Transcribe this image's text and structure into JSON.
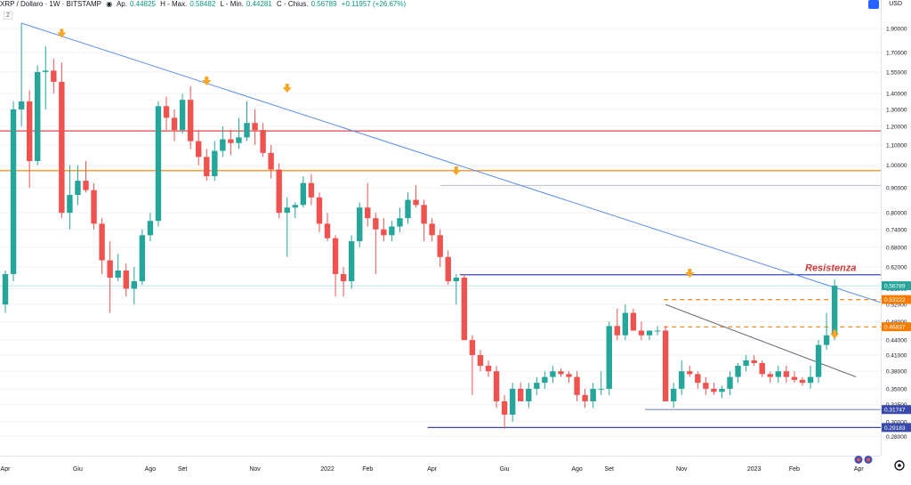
{
  "header": {
    "symbol": "XRP / Dollaro · 1W · BITSTAMP",
    "o_label": "Ap.",
    "o_value": "0.44825",
    "h_label": "H - Max.",
    "h_value": "0.58482",
    "l_label": "L - Min.",
    "l_value": "0.44281",
    "c_label": "C - Chius.",
    "c_value": "0.56789",
    "change": "+0.11957 (+26.67%)"
  },
  "scale_badge": "2",
  "currency": "USD",
  "colors": {
    "up": "#26a69a",
    "down": "#ef5350",
    "red_line": "#e0474c",
    "orange_line": "#f57c00",
    "blue_line": "#3949ab",
    "trend": "#5b8def"
  },
  "chart_data": {
    "type": "candlestick",
    "ylabel": "",
    "scale": "log",
    "ylim": [
      0.26,
      2.05
    ],
    "y_ticks": [
      "1.90000",
      "1.70000",
      "1.55000",
      "1.40000",
      "1.30000",
      "1.20000",
      "1.10000",
      "1.00000",
      "0.90000",
      "0.80000",
      "0.74000",
      "0.68000",
      "0.62000",
      "0.56000",
      "0.52000",
      "0.48000",
      "0.44000",
      "0.41000",
      "0.38000",
      "0.35000",
      "0.32500",
      "0.30000",
      "0.28000"
    ],
    "x_ticks": [
      {
        "label": "Apr",
        "i": 0
      },
      {
        "label": "Giu",
        "i": 9
      },
      {
        "label": "Ago",
        "i": 18
      },
      {
        "label": "Set",
        "i": 22
      },
      {
        "label": "Nov",
        "i": 31
      },
      {
        "label": "2022",
        "i": 40
      },
      {
        "label": "Feb",
        "i": 45
      },
      {
        "label": "Apr",
        "i": 53
      },
      {
        "label": "Giu",
        "i": 62
      },
      {
        "label": "Ago",
        "i": 71
      },
      {
        "label": "Set",
        "i": 75
      },
      {
        "label": "Nov",
        "i": 84
      },
      {
        "label": "2023",
        "i": 93
      },
      {
        "label": "Feb",
        "i": 98
      },
      {
        "label": "Apr",
        "i": 106
      }
    ],
    "candles": [
      [
        0.52,
        0.61,
        0.5,
        0.6
      ],
      [
        0.6,
        1.35,
        0.58,
        1.3
      ],
      [
        1.3,
        1.95,
        1.2,
        1.35
      ],
      [
        1.35,
        1.42,
        0.9,
        1.02
      ],
      [
        1.02,
        1.6,
        1.0,
        1.55
      ],
      [
        1.55,
        1.75,
        1.3,
        1.56
      ],
      [
        1.56,
        1.65,
        1.4,
        1.48
      ],
      [
        1.48,
        1.62,
        0.78,
        0.8
      ],
      [
        0.8,
        1.0,
        0.74,
        0.87
      ],
      [
        0.87,
        1.0,
        0.83,
        0.93
      ],
      [
        0.93,
        1.02,
        0.88,
        0.89
      ],
      [
        0.89,
        0.92,
        0.74,
        0.76
      ],
      [
        0.76,
        0.78,
        0.6,
        0.64
      ],
      [
        0.64,
        0.7,
        0.5,
        0.59
      ],
      [
        0.59,
        0.66,
        0.58,
        0.61
      ],
      [
        0.61,
        0.63,
        0.54,
        0.56
      ],
      [
        0.56,
        0.62,
        0.52,
        0.58
      ],
      [
        0.58,
        0.74,
        0.57,
        0.72
      ],
      [
        0.72,
        0.8,
        0.7,
        0.77
      ],
      [
        0.77,
        1.35,
        0.75,
        1.32
      ],
      [
        1.32,
        1.38,
        1.18,
        1.25
      ],
      [
        1.25,
        1.3,
        1.12,
        1.18
      ],
      [
        1.18,
        1.4,
        1.16,
        1.36
      ],
      [
        1.36,
        1.45,
        1.08,
        1.12
      ],
      [
        1.12,
        1.18,
        1.0,
        1.04
      ],
      [
        1.04,
        1.08,
        0.93,
        0.95
      ],
      [
        0.95,
        1.12,
        0.93,
        1.07
      ],
      [
        1.07,
        1.2,
        1.04,
        1.13
      ],
      [
        1.13,
        1.18,
        1.05,
        1.11
      ],
      [
        1.11,
        1.25,
        1.08,
        1.14
      ],
      [
        1.14,
        1.35,
        1.12,
        1.22
      ],
      [
        1.22,
        1.3,
        1.1,
        1.18
      ],
      [
        1.18,
        1.22,
        1.04,
        1.06
      ],
      [
        1.06,
        1.1,
        0.94,
        0.98
      ],
      [
        0.98,
        1.01,
        0.78,
        0.8
      ],
      [
        0.8,
        0.86,
        0.65,
        0.82
      ],
      [
        0.82,
        0.84,
        0.78,
        0.83
      ],
      [
        0.83,
        0.95,
        0.82,
        0.92
      ],
      [
        0.92,
        0.96,
        0.83,
        0.86
      ],
      [
        0.86,
        0.88,
        0.73,
        0.76
      ],
      [
        0.76,
        0.8,
        0.7,
        0.71
      ],
      [
        0.71,
        0.72,
        0.54,
        0.6
      ],
      [
        0.6,
        0.62,
        0.54,
        0.58
      ],
      [
        0.58,
        0.72,
        0.56,
        0.7
      ],
      [
        0.7,
        0.84,
        0.68,
        0.82
      ],
      [
        0.82,
        0.92,
        0.75,
        0.78
      ],
      [
        0.78,
        0.8,
        0.6,
        0.74
      ],
      [
        0.74,
        0.78,
        0.7,
        0.72
      ],
      [
        0.72,
        0.77,
        0.7,
        0.75
      ],
      [
        0.75,
        0.82,
        0.73,
        0.78
      ],
      [
        0.78,
        0.88,
        0.76,
        0.85
      ],
      [
        0.85,
        0.91,
        0.82,
        0.83
      ],
      [
        0.83,
        0.85,
        0.7,
        0.76
      ],
      [
        0.76,
        0.78,
        0.7,
        0.72
      ],
      [
        0.72,
        0.74,
        0.62,
        0.65
      ],
      [
        0.65,
        0.67,
        0.57,
        0.58
      ],
      [
        0.58,
        0.6,
        0.52,
        0.59
      ],
      [
        0.59,
        0.6,
        0.44,
        0.44
      ],
      [
        0.44,
        0.45,
        0.34,
        0.41
      ],
      [
        0.41,
        0.42,
        0.38,
        0.39
      ],
      [
        0.39,
        0.4,
        0.37,
        0.38
      ],
      [
        0.38,
        0.39,
        0.32,
        0.33
      ],
      [
        0.33,
        0.34,
        0.29,
        0.31
      ],
      [
        0.31,
        0.36,
        0.3,
        0.35
      ],
      [
        0.35,
        0.36,
        0.33,
        0.33
      ],
      [
        0.33,
        0.36,
        0.32,
        0.35
      ],
      [
        0.35,
        0.37,
        0.34,
        0.36
      ],
      [
        0.36,
        0.38,
        0.35,
        0.37
      ],
      [
        0.37,
        0.39,
        0.36,
        0.38
      ],
      [
        0.38,
        0.385,
        0.37,
        0.375
      ],
      [
        0.375,
        0.38,
        0.36,
        0.37
      ],
      [
        0.37,
        0.38,
        0.33,
        0.34
      ],
      [
        0.34,
        0.35,
        0.32,
        0.33
      ],
      [
        0.33,
        0.36,
        0.32,
        0.35
      ],
      [
        0.35,
        0.38,
        0.34,
        0.35
      ],
      [
        0.35,
        0.48,
        0.34,
        0.47
      ],
      [
        0.47,
        0.51,
        0.44,
        0.45
      ],
      [
        0.45,
        0.52,
        0.44,
        0.5
      ],
      [
        0.5,
        0.51,
        0.46,
        0.46
      ],
      [
        0.46,
        0.48,
        0.44,
        0.45
      ],
      [
        0.45,
        0.46,
        0.44,
        0.46
      ],
      [
        0.46,
        0.47,
        0.45,
        0.46
      ],
      [
        0.46,
        0.47,
        0.33,
        0.33
      ],
      [
        0.33,
        0.36,
        0.32,
        0.35
      ],
      [
        0.35,
        0.4,
        0.34,
        0.38
      ],
      [
        0.38,
        0.39,
        0.37,
        0.375
      ],
      [
        0.375,
        0.38,
        0.35,
        0.36
      ],
      [
        0.36,
        0.37,
        0.34,
        0.35
      ],
      [
        0.35,
        0.36,
        0.34,
        0.345
      ],
      [
        0.345,
        0.355,
        0.335,
        0.35
      ],
      [
        0.35,
        0.38,
        0.34,
        0.37
      ],
      [
        0.37,
        0.395,
        0.36,
        0.39
      ],
      [
        0.39,
        0.41,
        0.38,
        0.4
      ],
      [
        0.4,
        0.41,
        0.39,
        0.395
      ],
      [
        0.395,
        0.4,
        0.37,
        0.375
      ],
      [
        0.375,
        0.38,
        0.36,
        0.37
      ],
      [
        0.37,
        0.39,
        0.36,
        0.38
      ],
      [
        0.38,
        0.39,
        0.36,
        0.37
      ],
      [
        0.37,
        0.38,
        0.36,
        0.365
      ],
      [
        0.365,
        0.37,
        0.355,
        0.36
      ],
      [
        0.36,
        0.39,
        0.35,
        0.37
      ],
      [
        0.37,
        0.44,
        0.36,
        0.43
      ],
      [
        0.43,
        0.5,
        0.42,
        0.45
      ],
      [
        0.45,
        0.585,
        0.44,
        0.568
      ]
    ],
    "horizontal_lines": [
      {
        "name": "red",
        "price": 1.175,
        "color": "#e0474c"
      },
      {
        "name": "orange",
        "price": 0.975,
        "color": "#f57c00"
      },
      {
        "name": "resistance",
        "price": 0.598,
        "color": "#3949ab",
        "from_i": 57
      },
      {
        "name": "support",
        "price": 0.2918,
        "color": "#3949ab",
        "from_i": 53
      },
      {
        "name": "support-thin",
        "price": 0.3175,
        "color": "#5c6bc0",
        "from_i": 80
      }
    ],
    "resistance_label": "Resistenza",
    "price_labels": [
      {
        "text": "0.56789",
        "price": 0.56789,
        "color": "#26a69a"
      },
      {
        "text": "0.53222",
        "price": 0.53222,
        "color": "#f57c00"
      },
      {
        "text": "0.46837",
        "price": 0.46837,
        "color": "#f57c00"
      },
      {
        "text": "0.31747",
        "price": 0.31747,
        "color": "#3949ab"
      },
      {
        "text": "0.29183",
        "price": 0.29183,
        "color": "#3949ab"
      }
    ],
    "dashed_levels": [
      {
        "price": 0.532,
        "from_i": 84
      },
      {
        "price": 0.468,
        "from_i": 84
      }
    ],
    "arrows_at": [
      {
        "i": 7,
        "price": 1.85
      },
      {
        "i": 25,
        "price": 1.48
      },
      {
        "i": 35,
        "price": 1.43
      },
      {
        "i": 56,
        "price": 0.97
      },
      {
        "i": 85,
        "price": 0.6
      },
      {
        "i": 103,
        "price": 0.45
      }
    ]
  }
}
